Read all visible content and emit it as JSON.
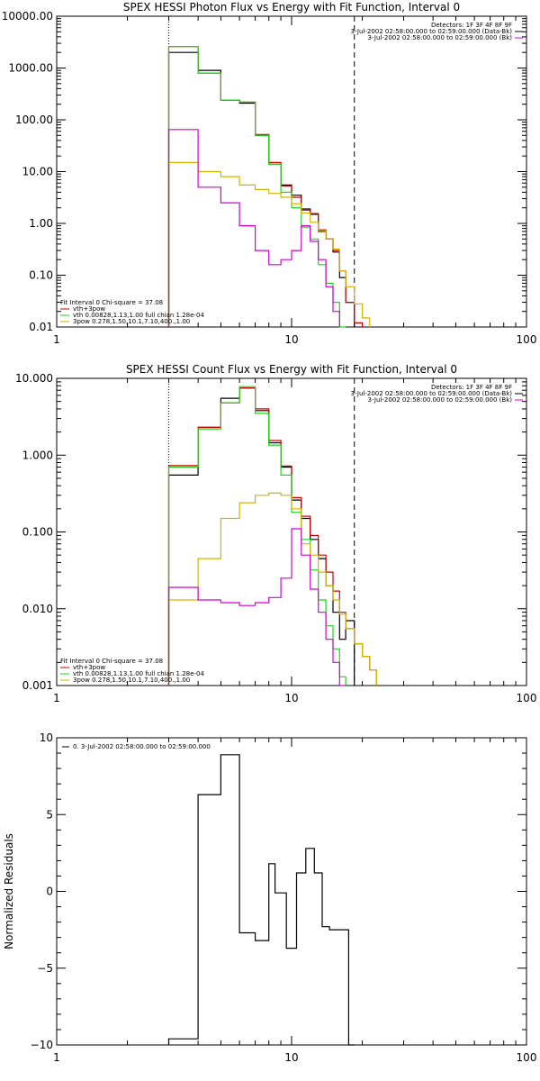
{
  "chart_data": [
    {
      "type": "line",
      "title": "SPEX HESSI Photon Flux vs Energy with Fit Function, Interval 0",
      "xscale": "log",
      "yscale": "log",
      "xlim": [
        1,
        100
      ],
      "ylim": [
        0.01,
        10000
      ],
      "x_tick_labels": [
        "1",
        "10",
        "100"
      ],
      "y_tick_values": [
        0.01,
        0.1,
        1,
        10,
        100,
        1000,
        10000
      ],
      "y_tick_labels": [
        "0.01",
        "0.10",
        "1.00",
        "10.00",
        "100.00",
        "1000.00",
        "10000.00"
      ],
      "legend_top": [
        "Detectors: 1F 3F 4F 8F 9F",
        "3-Jul-2002 02:58:00.000 to 02:59:00.000 (Data-Bk)",
        "3-Jul-2002 02:58:00.000 to 02:59:00.000 (Bk)"
      ],
      "legend_bottom": [
        "Fit Interval 0   Chi-square = 37.08",
        "vth+3pow",
        "vth 0.00828,1.13,1.00  full chian 1.28e-04",
        "3pow 0.278,1.50,10.1,7.10,400.,1.00"
      ],
      "vertical_lines": [
        3,
        18.5
      ],
      "bin_edges": [
        3.0,
        4.0,
        5.0,
        6.0,
        7.0,
        8.0,
        9.0,
        10.0,
        11.0,
        12.0,
        13.0,
        14.0,
        15.0,
        16.0,
        17.0,
        18.5,
        20.0,
        21.5,
        23.0
      ],
      "series": [
        {
          "name": "3-Jul-2002 02:58:00.000 to 02:59:00.000 (Data-Bk)",
          "color": "#000000",
          "values": [
            2000,
            900,
            240,
            210,
            50,
            14,
            5.5,
            3.5,
            1.9,
            1.5,
            0.7,
            0.5,
            0.28,
            0.09,
            0.03,
            null,
            null,
            null
          ]
        },
        {
          "name": "vth+3pow",
          "color": "#d10000",
          "values": [
            2600,
            800,
            240,
            220,
            52,
            15,
            5.3,
            3.2,
            1.8,
            1.55,
            0.75,
            0.5,
            0.3,
            0.12,
            0.03,
            0.012,
            null,
            null
          ]
        },
        {
          "name": "vth 0.00828,1.13,1.00  full chian 1.28e-04",
          "color": "#19d919",
          "values": [
            2600,
            800,
            240,
            220,
            50,
            14,
            4.0,
            2.0,
            0.85,
            0.5,
            0.16,
            0.07,
            0.03,
            0.01,
            null,
            null,
            null,
            null
          ]
        },
        {
          "name": "3pow 0.278,1.50,10.1,7.10,400.,1.00",
          "color": "#d2b400",
          "values": [
            15,
            10,
            8,
            5.5,
            4.5,
            3.8,
            3.2,
            2.4,
            1.6,
            1.05,
            0.72,
            0.5,
            0.32,
            0.12,
            0.06,
            0.028,
            0.015,
            null
          ]
        },
        {
          "name": "3-Jul-2002 02:58:00.000 to 02:59:00.000 (Bk)",
          "color": "#d400d4",
          "values": [
            65,
            5,
            2.5,
            0.9,
            0.3,
            0.16,
            0.2,
            0.3,
            0.9,
            0.45,
            0.2,
            0.06,
            0.02,
            null,
            null,
            null,
            null,
            null
          ]
        }
      ]
    },
    {
      "type": "line",
      "title": "SPEX HESSI Count Flux vs Energy with Fit Function, Interval 0",
      "xscale": "log",
      "yscale": "log",
      "xlim": [
        1,
        100
      ],
      "ylim": [
        0.001,
        10
      ],
      "x_tick_labels": [
        "1",
        "10",
        "100"
      ],
      "y_tick_values": [
        0.001,
        0.01,
        0.1,
        1,
        10
      ],
      "y_tick_labels": [
        "0.001",
        "0.010",
        "0.100",
        "1.000",
        "10.000"
      ],
      "legend_top": [
        "Detectors: 1F 3F 4F 8F 9F",
        "3-Jul-2002 02:58:00.000 to 02:59:00.000 (Data-Bk)",
        "3-Jul-2002 02:58:00.000 to 02:59:00.000 (Bk)"
      ],
      "legend_bottom": [
        "Fit Interval 0   Chi-square = 37.08",
        "vth+3pow",
        "vth 0.00828,1.13,1.00  full chian 1.28e-04",
        "3pow 0.278,1.50,10.1,7.10,400.,1.00"
      ],
      "vertical_lines": [
        3,
        18.5
      ],
      "bin_edges": [
        3.0,
        4.0,
        5.0,
        6.0,
        7.0,
        8.0,
        9.0,
        10.0,
        11.0,
        12.0,
        13.0,
        14.0,
        15.0,
        16.0,
        17.0,
        18.5,
        20.0,
        21.5,
        23.0
      ],
      "series": [
        {
          "name": "3-Jul-2002 02:58:00.000 to 02:59:00.000 (Data-Bk)",
          "color": "#000000",
          "values": [
            0.55,
            2.3,
            5.5,
            7.5,
            3.8,
            1.45,
            0.7,
            0.26,
            0.15,
            0.08,
            0.045,
            0.02,
            0.009,
            0.004,
            0.007,
            null,
            null,
            null
          ]
        },
        {
          "name": "vth+3pow",
          "color": "#d10000",
          "values": [
            0.73,
            2.3,
            4.8,
            7.5,
            4.0,
            1.55,
            0.72,
            0.28,
            0.16,
            0.09,
            0.05,
            0.03,
            0.017,
            0.009,
            0.0055,
            0.0035,
            0.0024,
            0.0016
          ]
        },
        {
          "name": "vth 0.00828,1.13,1.00  full chian 1.28e-04",
          "color": "#19d919",
          "values": [
            0.7,
            2.2,
            4.8,
            7.8,
            3.5,
            1.35,
            0.55,
            0.18,
            0.08,
            0.032,
            0.013,
            0.006,
            0.003,
            0.0013,
            null,
            null,
            null,
            null
          ]
        },
        {
          "name": "3pow 0.278,1.50,10.1,7.10,400.,1.00",
          "color": "#d2b400",
          "values": [
            0.013,
            0.045,
            0.15,
            0.24,
            0.3,
            0.32,
            0.3,
            0.2,
            0.07,
            0.05,
            0.03,
            0.02,
            0.013,
            0.0085,
            0.0055,
            0.0035,
            0.0024,
            0.0016
          ]
        },
        {
          "name": "3-Jul-2002 02:58:00.000 to 02:59:00.000 (Bk)",
          "color": "#d400d4",
          "values": [
            0.019,
            0.013,
            0.012,
            0.011,
            0.012,
            0.014,
            0.025,
            0.11,
            0.05,
            0.018,
            0.009,
            0.004,
            0.002,
            0.001,
            null,
            null,
            null,
            null
          ]
        }
      ]
    },
    {
      "type": "line",
      "title": "",
      "xscale": "log",
      "yscale": "linear",
      "xlim": [
        1,
        100
      ],
      "ylim": [
        -10,
        10
      ],
      "x_tick_labels": [
        "1",
        "10",
        "100"
      ],
      "y_tick_values": [
        -10,
        -5,
        0,
        5,
        10
      ],
      "y_tick_labels": [
        "−10",
        "−5",
        "0",
        "5",
        "10"
      ],
      "ylabel": "Normalized Residuals",
      "legend_top": [
        "0. 3-Jul-2002 02:58:00.000 to 02:59:00.000"
      ],
      "bin_edges": [
        3.0,
        4.0,
        5.0,
        6.0,
        7.0,
        8.0,
        8.5,
        9.5,
        10.5,
        11.5,
        12.5,
        13.5,
        14.5,
        16.0,
        17.5,
        18.5
      ],
      "series": [
        {
          "name": "0. 3-Jul-2002 02:58:00.000 to 02:59:00.000",
          "color": "#000000",
          "values": [
            -9.6,
            6.3,
            8.9,
            -2.7,
            -3.2,
            1.8,
            -0.1,
            -3.7,
            1.2,
            2.8,
            1.2,
            -2.3,
            -2.5,
            -2.5,
            -10
          ]
        }
      ]
    }
  ]
}
